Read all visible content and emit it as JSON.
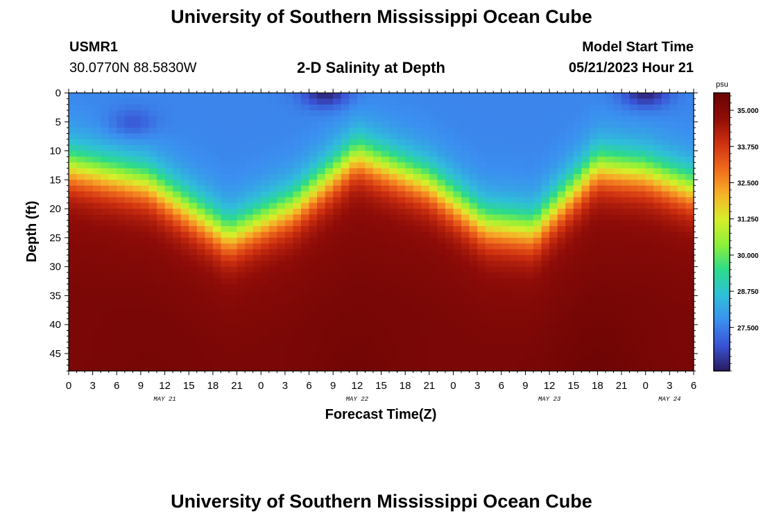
{
  "header": {
    "title": "University of Southern Mississippi Ocean Cube",
    "station": "USMR1",
    "coords": "30.0770N  88.5830W",
    "plot_title": "2-D Salinity at Depth",
    "model_label": "Model Start Time",
    "model_time": "05/21/2023 Hour 21"
  },
  "footer": {
    "title": "University of Southern Mississippi Ocean Cube"
  },
  "chart_data": {
    "type": "heatmap",
    "title": "2-D Salinity at Depth",
    "xlabel": "Forecast Time(Z)",
    "ylabel": "Depth (ft)",
    "x_range_hours": [
      0,
      78
    ],
    "y_range_ft": [
      0,
      48
    ],
    "x_ticks": [
      {
        "h": 0,
        "label": "0"
      },
      {
        "h": 3,
        "label": "3"
      },
      {
        "h": 6,
        "label": "6"
      },
      {
        "h": 9,
        "label": "9"
      },
      {
        "h": 12,
        "label": "12"
      },
      {
        "h": 15,
        "label": "15"
      },
      {
        "h": 18,
        "label": "18"
      },
      {
        "h": 21,
        "label": "21"
      },
      {
        "h": 24,
        "label": "0"
      },
      {
        "h": 27,
        "label": "3"
      },
      {
        "h": 30,
        "label": "6"
      },
      {
        "h": 33,
        "label": "9"
      },
      {
        "h": 36,
        "label": "12"
      },
      {
        "h": 39,
        "label": "15"
      },
      {
        "h": 42,
        "label": "18"
      },
      {
        "h": 45,
        "label": "21"
      },
      {
        "h": 48,
        "label": "0"
      },
      {
        "h": 51,
        "label": "3"
      },
      {
        "h": 54,
        "label": "6"
      },
      {
        "h": 57,
        "label": "9"
      },
      {
        "h": 60,
        "label": "12"
      },
      {
        "h": 63,
        "label": "15"
      },
      {
        "h": 66,
        "label": "18"
      },
      {
        "h": 69,
        "label": "21"
      },
      {
        "h": 72,
        "label": "0"
      },
      {
        "h": 75,
        "label": "3"
      },
      {
        "h": 78,
        "label": "6"
      }
    ],
    "date_labels": [
      {
        "h": 12,
        "label": "MAY 21"
      },
      {
        "h": 36,
        "label": "MAY 22"
      },
      {
        "h": 60,
        "label": "MAY 23"
      },
      {
        "h": 75,
        "label": "MAY 24"
      }
    ],
    "y_ticks": [
      0,
      5,
      10,
      15,
      20,
      25,
      30,
      35,
      40,
      45
    ],
    "colorbar": {
      "unit": "psu",
      "min": 26.0,
      "max": 35.6,
      "ticks": [
        "35.000",
        "33.750",
        "32.500",
        "31.250",
        "30.000",
        "28.750",
        "27.500"
      ],
      "colors": [
        "#2a1a5e",
        "#3a52d4",
        "#3b8ff0",
        "#2fbfd9",
        "#2cdb8a",
        "#8ef03a",
        "#d7ee2a",
        "#f7b128",
        "#ef6a1c",
        "#cf3010",
        "#8f0c08",
        "#6a0404"
      ]
    },
    "model": {
      "surface_psu": 27.6,
      "deep_psu": 35.2,
      "halocline": [
        {
          "h": 0,
          "depth_ft": 13
        },
        {
          "h": 10,
          "depth_ft": 16
        },
        {
          "h": 20,
          "depth_ft": 25
        },
        {
          "h": 28,
          "depth_ft": 20
        },
        {
          "h": 36,
          "depth_ft": 11
        },
        {
          "h": 45,
          "depth_ft": 16
        },
        {
          "h": 52,
          "depth_ft": 23
        },
        {
          "h": 58,
          "depth_ft": 24
        },
        {
          "h": 66,
          "depth_ft": 13
        },
        {
          "h": 72,
          "depth_ft": 14
        },
        {
          "h": 78,
          "depth_ft": 17
        }
      ],
      "fresh_patches": [
        {
          "h": 8,
          "depth_ft": 5,
          "psu": 27.0
        },
        {
          "h": 32,
          "depth_ft": 0,
          "psu": 26.2
        },
        {
          "h": 72,
          "depth_ft": 0,
          "psu": 26.2
        }
      ],
      "bottom_max": [
        {
          "h": 10,
          "psu": 35.3
        },
        {
          "h": 36,
          "psu": 35.4
        },
        {
          "h": 66,
          "psu": 35.5
        }
      ]
    }
  }
}
